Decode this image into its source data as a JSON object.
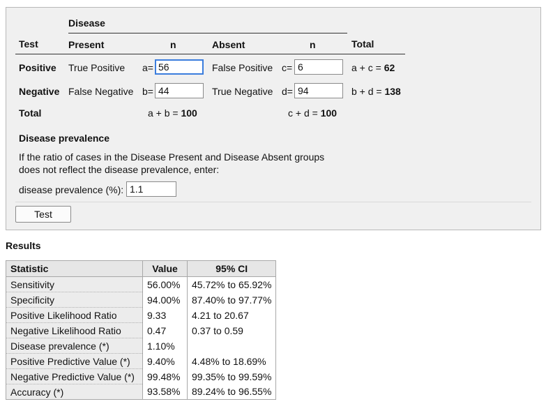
{
  "form": {
    "disease_header": "Disease",
    "col_test": "Test",
    "col_present": "Present",
    "col_n1": "n",
    "col_absent": "Absent",
    "col_n2": "n",
    "col_total": "Total",
    "row_positive": {
      "label": "Positive",
      "present_label": "True Positive",
      "a_label": "a=",
      "a_value": "56",
      "absent_label": "False Positive",
      "c_label": "c=",
      "c_value": "6",
      "total_expr": "a + c = ",
      "total_value": "62"
    },
    "row_negative": {
      "label": "Negative",
      "present_label": "False Negative",
      "b_label": "b=",
      "b_value": "44",
      "absent_label": "True Negative",
      "d_label": "d=",
      "d_value": "94",
      "total_expr": "b + d = ",
      "total_value": "138"
    },
    "row_total": {
      "label": "Total",
      "ab_expr": "a + b = ",
      "ab_value": "100",
      "cd_expr": "c + d = ",
      "cd_value": "100"
    },
    "prevalence": {
      "heading": "Disease prevalence",
      "line1": "If the ratio of cases in the Disease Present and Disease Absent groups",
      "line2": "does not reflect the disease prevalence, enter:",
      "label": "disease prevalence (%):",
      "value": "1.1"
    },
    "test_button": "Test"
  },
  "results": {
    "title": "Results",
    "headers": [
      "Statistic",
      "Value",
      "95% CI"
    ],
    "rows": [
      {
        "stat": "Sensitivity",
        "value": "56.00%",
        "ci": "45.72% to 65.92%"
      },
      {
        "stat": "Specificity",
        "value": "94.00%",
        "ci": "87.40% to 97.77%"
      },
      {
        "stat": "Positive Likelihood Ratio",
        "value": "9.33",
        "ci": "4.21 to 20.67"
      },
      {
        "stat": "Negative Likelihood Ratio",
        "value": "0.47",
        "ci": "0.37 to 0.59"
      },
      {
        "stat": "Disease prevalence (*)",
        "value": "1.10%",
        "ci": ""
      },
      {
        "stat": "Positive Predictive Value (*)",
        "value": "9.40%",
        "ci": "4.48% to 18.69%"
      },
      {
        "stat": "Negative Predictive Value (*)",
        "value": "99.48%",
        "ci": "99.35% to 99.59%"
      },
      {
        "stat": "Accuracy (*)",
        "value": "93.58%",
        "ci": "89.24% to 96.55%"
      }
    ]
  }
}
